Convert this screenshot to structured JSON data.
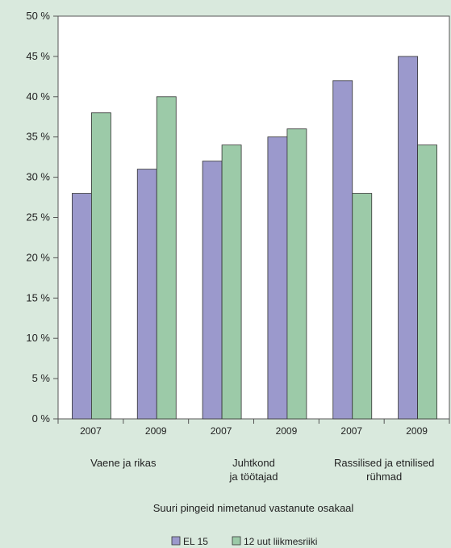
{
  "chart_data": {
    "type": "bar",
    "title": "",
    "xlabel": "Suuri pingeid nimetanud vastanute osakaal",
    "ylabel": "",
    "ylim": [
      0,
      50
    ],
    "y_ticks": [
      "0 %",
      "5 %",
      "10 %",
      "15 %",
      "20 %",
      "25 %",
      "30 %",
      "35 %",
      "40 %",
      "45 %",
      "50 %"
    ],
    "years": [
      "2007",
      "2009",
      "2007",
      "2009",
      "2007",
      "2009"
    ],
    "groups": [
      {
        "label_lines": [
          "Vaene ja rikas"
        ]
      },
      {
        "label_lines": [
          "Juhtkond",
          "ja töötajad"
        ]
      },
      {
        "label_lines": [
          "Rassilised ja etnilised",
          "rühmad"
        ]
      }
    ],
    "series": [
      {
        "name": "EL 15",
        "color": "#9b99cc",
        "values": [
          28,
          31,
          32,
          35,
          42,
          45
        ]
      },
      {
        "name": "12 uut liikmesriiki",
        "color": "#9ccaa8",
        "values": [
          38,
          40,
          34,
          36,
          28,
          34
        ]
      }
    ],
    "grid": false,
    "legend_position": "bottom"
  }
}
